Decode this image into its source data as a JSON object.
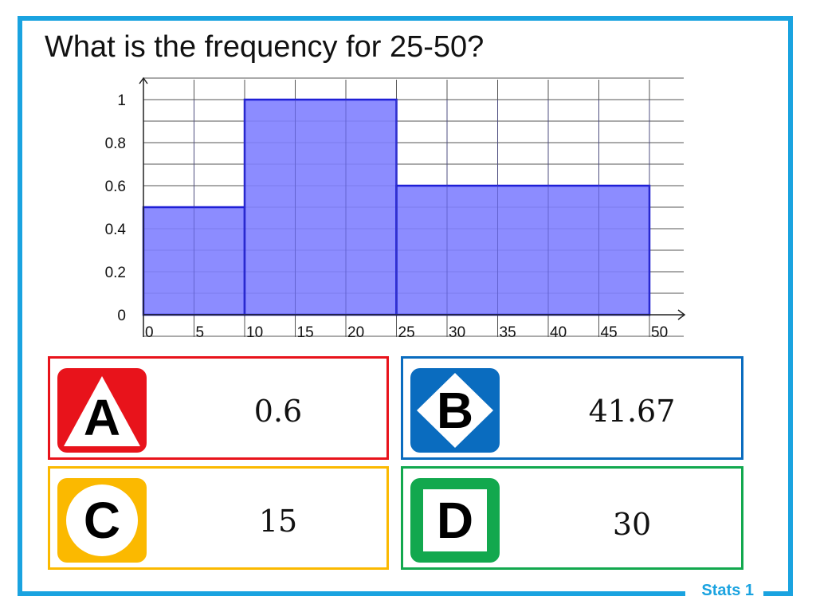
{
  "question": "What is the frequency for 25-50?",
  "footer": "Stats 1",
  "colors": {
    "frame": "#1aa3e0",
    "bar_fill": "#7f7fff",
    "bar_stroke": "#1f1fd6",
    "grid": "#555555"
  },
  "answers": [
    {
      "letter": "A",
      "value": "0.6",
      "color": "#e8131b",
      "shape": "triangle-icon"
    },
    {
      "letter": "B",
      "value": "41.67",
      "color": "#0a6cbf",
      "shape": "diamond-icon"
    },
    {
      "letter": "C",
      "value": "15",
      "color": "#fbb900",
      "shape": "circle-icon"
    },
    {
      "letter": "D",
      "value": "30",
      "color": "#12a84e",
      "shape": "square-icon"
    }
  ],
  "chart_data": {
    "type": "bar",
    "title": "",
    "xlabel": "",
    "ylabel": "",
    "xlim": [
      0,
      50
    ],
    "ylim": [
      0,
      1
    ],
    "x_ticks": [
      "0",
      "5",
      "10",
      "15",
      "20",
      "25",
      "30",
      "35",
      "40",
      "45",
      "50"
    ],
    "y_ticks": [
      "0",
      "0.2",
      "0.4",
      "0.6",
      "0.8",
      "1"
    ],
    "bins": [
      {
        "start": 0,
        "end": 10,
        "value": 0.5
      },
      {
        "start": 10,
        "end": 25,
        "value": 1
      },
      {
        "start": 25,
        "end": 50,
        "value": 0.6
      }
    ],
    "grid": true,
    "legend": "none"
  }
}
